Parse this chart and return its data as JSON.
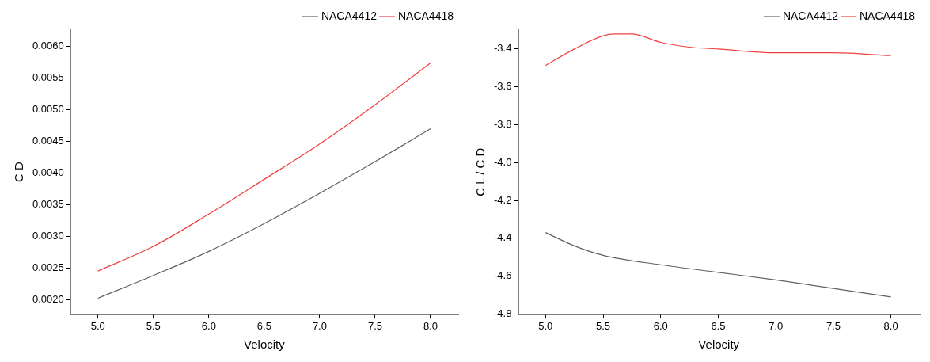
{
  "chart_data": [
    {
      "type": "line",
      "xlabel": "Velocity",
      "ylabel": "C D",
      "legend": "top right",
      "grid": false,
      "marker": "none",
      "line_style": "solid",
      "x": [
        5.0,
        5.5,
        6.0,
        6.5,
        7.0,
        7.5,
        8.0
      ],
      "xlim": [
        4.75,
        8.25
      ],
      "xticks": [
        {
          "value": 5,
          "label": "5.0"
        },
        5.5,
        {
          "value": 6,
          "label": "6.0"
        },
        6.5,
        {
          "value": 7,
          "label": "7.0"
        },
        7.5,
        {
          "value": 8,
          "label": "8.0"
        }
      ],
      "ylim": [
        0.00177,
        0.00626
      ],
      "yticks": [
        {
          "value": 0.002,
          "label": "0.0020"
        },
        0.0025,
        {
          "value": 0.003,
          "label": "0.0030"
        },
        0.0035,
        {
          "value": 0.004,
          "label": "0.0040"
        },
        0.0045,
        {
          "value": 0.005,
          "label": "0.0050"
        },
        0.0055,
        {
          "value": 0.006,
          "label": "0.0060"
        }
      ],
      "series": [
        {
          "name": "NACA4412",
          "color": "#606060",
          "values": [
            0.00202,
            0.00238,
            0.00276,
            0.0032,
            0.00368,
            0.00418,
            0.0047
          ]
        },
        {
          "name": "NACA4418",
          "color": "#f04040",
          "values": [
            0.00245,
            0.00284,
            0.00335,
            0.0039,
            0.00446,
            0.00508,
            0.00574
          ]
        }
      ]
    },
    {
      "type": "line",
      "xlabel": "Velocity",
      "ylabel": "C L / C D",
      "legend": "top right",
      "grid": false,
      "marker": "none",
      "line_style": "solid",
      "xlim": [
        4.76,
        8.25
      ],
      "xticks": [
        {
          "value": 5,
          "label": "5.0"
        },
        5.5,
        {
          "value": 6,
          "label": "6.0"
        },
        6.5,
        {
          "value": 7,
          "label": "7.0"
        },
        7.5,
        {
          "value": 8,
          "label": "8.0"
        }
      ],
      "ylim": [
        -4.8,
        -3.3
      ],
      "yticks": [
        -4.8,
        -4.6,
        -4.4,
        -4.2,
        {
          "value": -4,
          "label": "-4.0"
        },
        -3.8,
        -3.6,
        -3.4
      ],
      "series": [
        {
          "name": "NACA4412",
          "color": "#606060",
          "x": [
            5.0,
            5.25,
            5.5,
            6.0,
            6.5,
            7.0,
            7.5,
            8.0
          ],
          "values": [
            -4.37,
            -4.44,
            -4.49,
            -4.54,
            -4.58,
            -4.62,
            -4.665,
            -4.71
          ]
        },
        {
          "name": "NACA4418",
          "color": "#f04040",
          "x": [
            5.0,
            5.25,
            5.5,
            5.6,
            5.75,
            6.0,
            6.25,
            6.5,
            7.0,
            7.5,
            8.0
          ],
          "values": [
            -3.487,
            -3.4,
            -3.33,
            -3.32,
            -3.32,
            -3.365,
            -3.39,
            -3.4,
            -3.42,
            -3.42,
            -3.435
          ]
        }
      ]
    }
  ]
}
